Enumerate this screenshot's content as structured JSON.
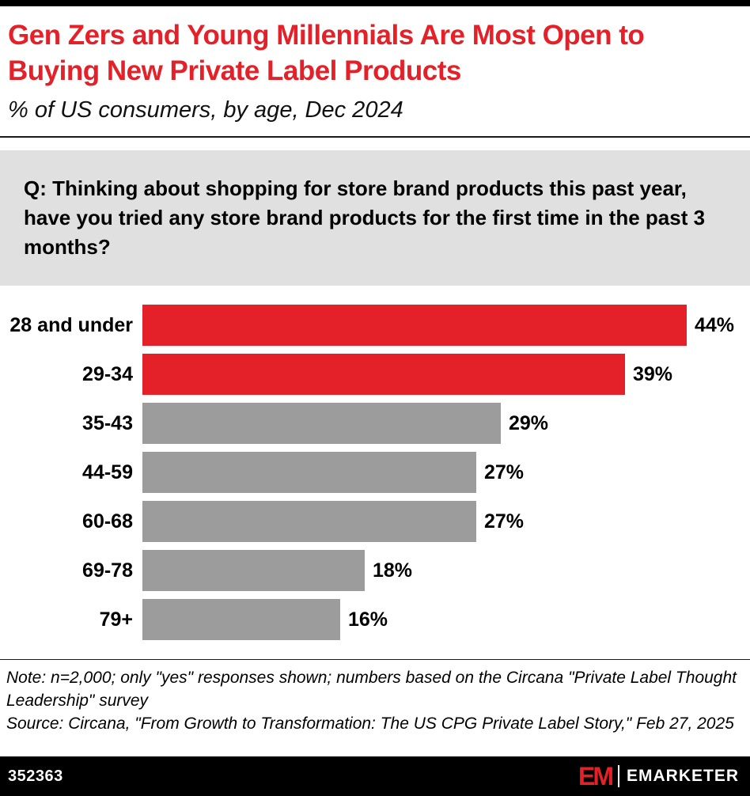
{
  "accent_color": "#E42129",
  "neutral_bar_color": "#9C9C9C",
  "header": {
    "title_lines": [
      "Gen Zers and Young Millennials Are Most Open to",
      "Buying New Private Label Products"
    ],
    "subtitle": "% of US consumers, by age, Dec 2024"
  },
  "question": {
    "text": "Q: Thinking about shopping for store brand products this past year, have you tried any store brand products for the first time in the past 3 months?"
  },
  "chart_data": {
    "type": "bar",
    "orientation": "horizontal",
    "title": "% of US consumers, by age, Dec 2024",
    "categories": [
      "28 and under",
      "29-34",
      "35-43",
      "44-59",
      "60-68",
      "69-78",
      "79+"
    ],
    "values": [
      44,
      39,
      29,
      27,
      27,
      18,
      16
    ],
    "value_labels": [
      "44%",
      "39%",
      "29%",
      "27%",
      "27%",
      "18%",
      "16%"
    ],
    "bar_colors": [
      "#E42129",
      "#E42129",
      "#9C9C9C",
      "#9C9C9C",
      "#9C9C9C",
      "#9C9C9C",
      "#9C9C9C"
    ],
    "xlim": [
      0,
      44
    ],
    "grid": false,
    "legend": null
  },
  "notes": {
    "note": "Note: n=2,000; only \"yes\" responses shown; numbers based on the Circana \"Private Label Thought Leadership\" survey",
    "source": "Source: Circana, \"From Growth to Transformation: The US CPG Private Label Story,\" Feb 27, 2025"
  },
  "footer": {
    "chart_id": "352363",
    "logo_mark": "EM",
    "brand_name": "EMARKETER"
  }
}
